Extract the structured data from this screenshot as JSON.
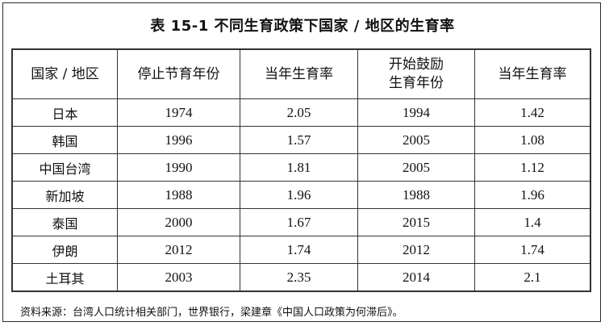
{
  "title": "表 15-1 不同生育政策下国家 / 地区的生育率",
  "table": {
    "headers": [
      [
        "国家 / 地区"
      ],
      [
        "停止节育年份"
      ],
      [
        "当年生育率"
      ],
      [
        "开始鼓励",
        "生育年份"
      ],
      [
        "当年生育率"
      ]
    ],
    "rows": [
      [
        "日本",
        "1974",
        "2.05",
        "1994",
        "1.42"
      ],
      [
        "韩国",
        "1996",
        "1.57",
        "2005",
        "1.08"
      ],
      [
        "中国台湾",
        "1990",
        "1.81",
        "2005",
        "1.12"
      ],
      [
        "新加坡",
        "1988",
        "1.96",
        "1988",
        "1.96"
      ],
      [
        "泰国",
        "2000",
        "1.67",
        "2015",
        "1.4"
      ],
      [
        "伊朗",
        "2012",
        "1.74",
        "2012",
        "1.74"
      ],
      [
        "土耳其",
        "2003",
        "2.35",
        "2014",
        "2.1"
      ]
    ]
  },
  "source": "资料来源：台湾人口统计相关部门，世界银行，梁建章《中国人口政策为何滞后》。"
}
